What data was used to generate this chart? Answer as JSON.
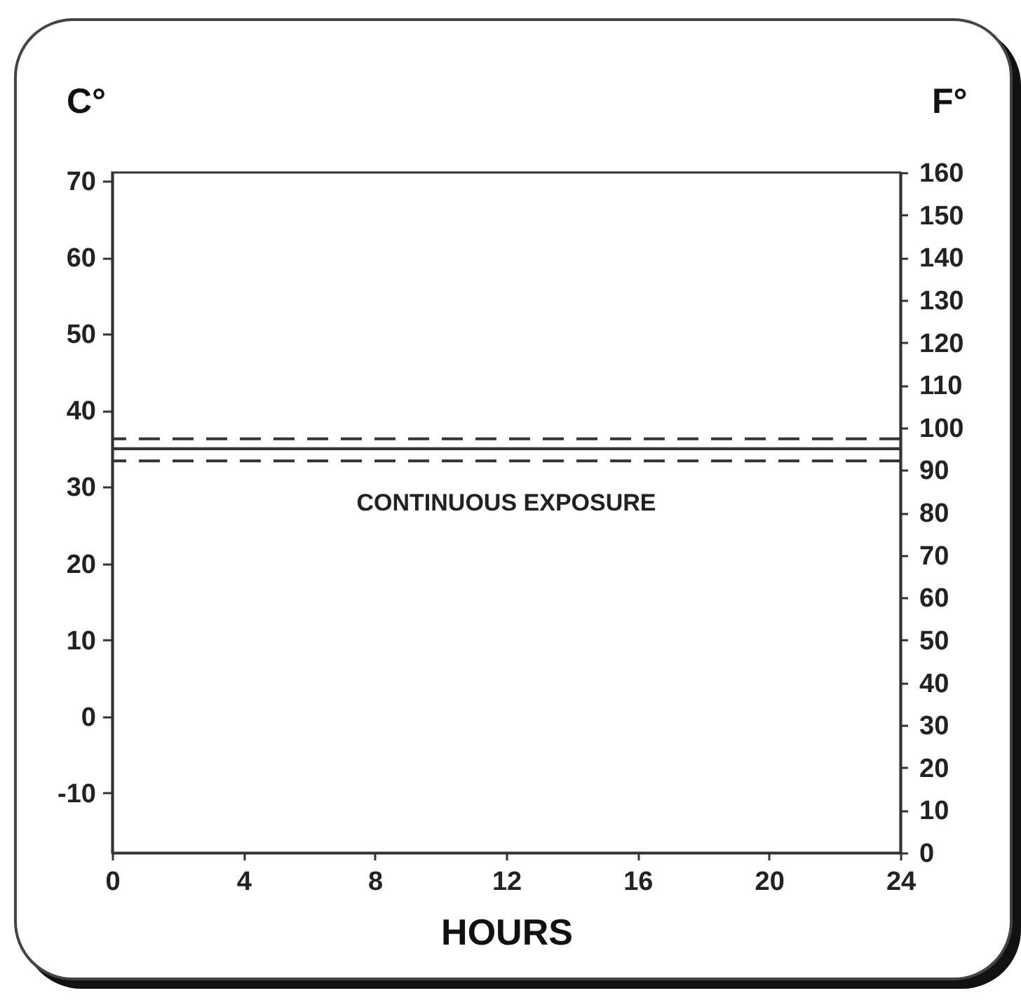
{
  "chart_data": {
    "type": "line",
    "xlabel": "HOURS",
    "ylabel": "C°",
    "y2label": "F°",
    "xlim": [
      0,
      24
    ],
    "xticks": [
      0,
      4,
      8,
      12,
      16,
      20,
      24
    ],
    "ylim": [
      -17.8,
      71.1
    ],
    "yticks": [
      -10,
      0,
      10,
      20,
      30,
      40,
      50,
      60,
      70
    ],
    "y2lim": [
      0,
      160
    ],
    "y2ticks": [
      0,
      10,
      20,
      30,
      40,
      50,
      60,
      70,
      80,
      90,
      100,
      110,
      120,
      130,
      140,
      150,
      160
    ],
    "series": [
      {
        "x": [
          0,
          24
        ],
        "values": [
          35,
          35
        ],
        "color": "#333333"
      }
    ],
    "ref_lines": [
      {
        "axis": "y",
        "value": 36.3,
        "line_style": "dashed",
        "color": "#333333"
      },
      {
        "axis": "y",
        "value": 33.4,
        "line_style": "dashed",
        "color": "#333333"
      }
    ],
    "annotations": [
      "CONTINUOUS EXPOSURE"
    ]
  }
}
